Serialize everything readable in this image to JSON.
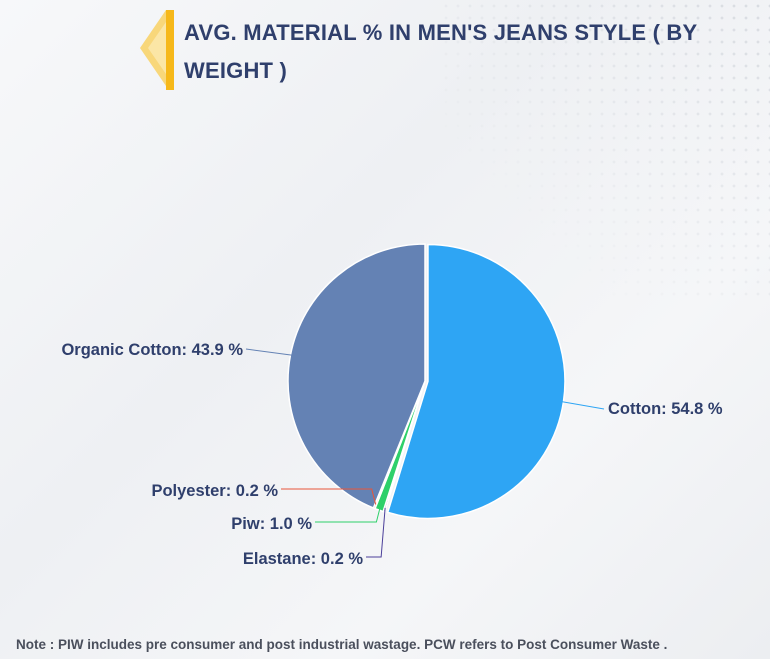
{
  "title": "AVG. MATERIAL % IN MEN'S JEANS STYLE ( BY WEIGHT )",
  "note": "Note : PIW includes pre consumer and post industrial wastage. PCW refers to Post Consumer Waste .",
  "colors": {
    "title": "#2f3f6c",
    "accent": "#f6b81a",
    "label": "#2f3f6c"
  },
  "chart_data": {
    "type": "pie",
    "title": "AVG. MATERIAL % IN MEN'S JEANS STYLE ( BY WEIGHT )",
    "unit": "%",
    "slices": [
      {
        "name": "Cotton",
        "value": 54.8,
        "label": "Cotton: 54.8 %",
        "color": "#2ea5f4"
      },
      {
        "name": "Elastane",
        "value": 0.2,
        "label": "Elastane: 0.2 %",
        "color": "#4b3f9a"
      },
      {
        "name": "Piw",
        "value": 1.0,
        "label": "Piw: 1.0 %",
        "color": "#2ed06a"
      },
      {
        "name": "Polyester",
        "value": 0.2,
        "label": "Polyester: 0.2 %",
        "color": "#e8553a"
      },
      {
        "name": "Organic Cotton",
        "value": 43.9,
        "label": "Organic Cotton: 43.9 %",
        "color": "#6482b4"
      }
    ],
    "start_angle": "top",
    "direction": "clockwise",
    "labels_outside": true
  }
}
